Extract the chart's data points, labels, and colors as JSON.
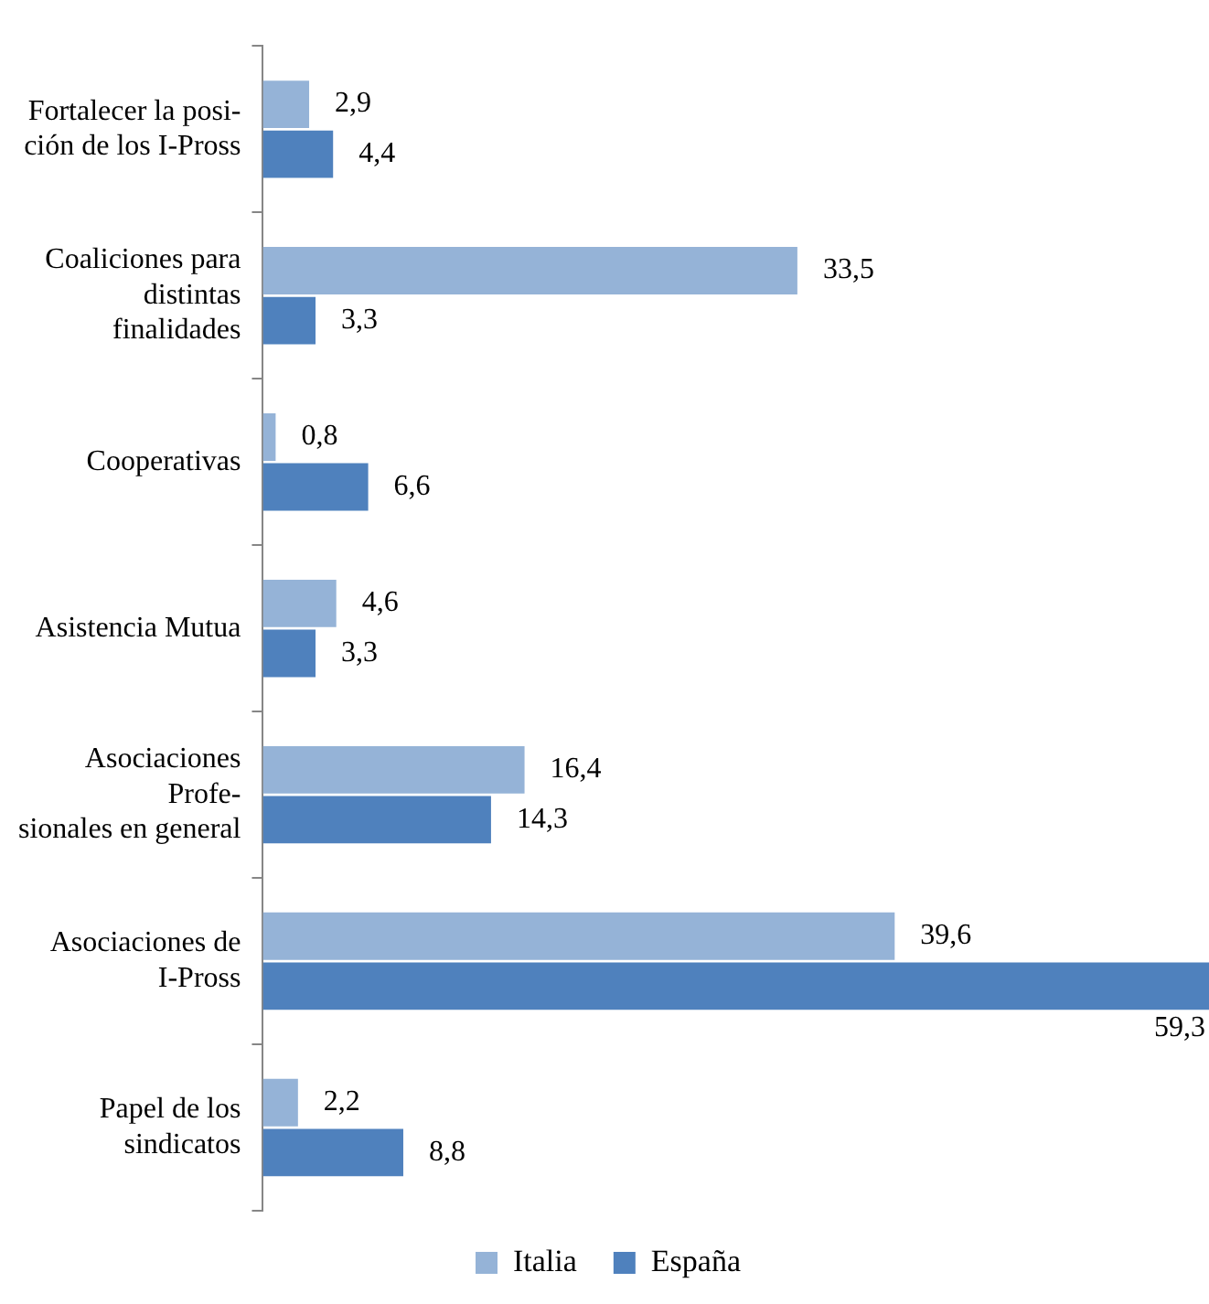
{
  "chart_data": {
    "type": "bar",
    "orientation": "horizontal",
    "categories": [
      "Fortalecer la posi-\nción de los I-Pross",
      "Coaliciones para\ndistintas\nfinalidades",
      "Cooperativas",
      "Asistencia Mutua",
      "Asociaciones\nProfe-\nsionales en general",
      "Asociaciones de\nI-Pross",
      "Papel de los\nsindicatos"
    ],
    "series": [
      {
        "name": "Italia",
        "color": "#95b3d7",
        "values": [
          2.9,
          33.5,
          0.8,
          4.6,
          16.4,
          39.6,
          2.2
        ],
        "value_labels": [
          "2,9",
          "33,5",
          "0,8",
          "4,6",
          "16,4",
          "39,6",
          "2,2"
        ]
      },
      {
        "name": "España",
        "color": "#4f81bd",
        "values": [
          4.4,
          3.3,
          6.6,
          3.3,
          14.3,
          59.3,
          8.8
        ],
        "value_labels": [
          "4,4",
          "3,3",
          "6,6",
          "3,3",
          "14,3",
          "59,3",
          "8,8"
        ]
      }
    ],
    "xlim": [
      0,
      59.3
    ],
    "tick_labels": "y",
    "legend": "bottom"
  }
}
